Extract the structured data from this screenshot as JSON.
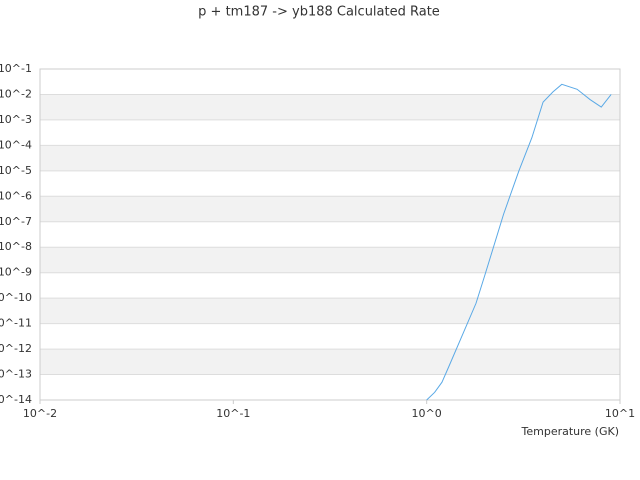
{
  "chart_data": {
    "type": "line",
    "title": "p + tm187 -> yb188 Calculated Rate",
    "x_label": "Temperature (GK)",
    "xscale": "log",
    "yscale": "log",
    "grid": true,
    "xlim": [
      0.01,
      10
    ],
    "ylim": [
      1e-14,
      0.1
    ],
    "xticks": [
      {
        "value": 0.01,
        "label": "10^-2"
      },
      {
        "value": 0.1,
        "label": "10^-1"
      },
      {
        "value": 1,
        "label": "10^0"
      },
      {
        "value": 10,
        "label": "10^1"
      }
    ],
    "yticks": [
      {
        "value": 0.1,
        "label": "10^-1"
      },
      {
        "value": 0.01,
        "label": "10^-2"
      },
      {
        "value": 0.001,
        "label": "10^-3"
      },
      {
        "value": 0.0001,
        "label": "10^-4"
      },
      {
        "value": 1e-05,
        "label": "10^-5"
      },
      {
        "value": 1e-06,
        "label": "10^-6"
      },
      {
        "value": 1e-07,
        "label": "10^-7"
      },
      {
        "value": 1e-08,
        "label": "10^-8"
      },
      {
        "value": 1e-09,
        "label": "10^-9"
      },
      {
        "value": 1e-10,
        "label": "10^-10"
      },
      {
        "value": 1e-11,
        "label": "10^-11"
      },
      {
        "value": 1e-12,
        "label": "10^-12"
      },
      {
        "value": 1e-13,
        "label": "10^-13"
      },
      {
        "value": 1e-14,
        "label": "10^-14"
      }
    ],
    "x": [
      1,
      1.1,
      1.2,
      1.3,
      1.5,
      1.8,
      2,
      2.5,
      3,
      3.5,
      4,
      4.5,
      5,
      6,
      7,
      8,
      9
    ],
    "series": [
      {
        "color": "#5aa9e6",
        "values": [
          1e-14,
          2e-14,
          5e-14,
          2e-13,
          2.5e-12,
          6.3e-11,
          8e-10,
          2e-07,
          1e-05,
          0.0002,
          0.005,
          0.0126,
          0.025,
          0.016,
          0.0063,
          0.0032,
          0.01
        ]
      }
    ]
  }
}
